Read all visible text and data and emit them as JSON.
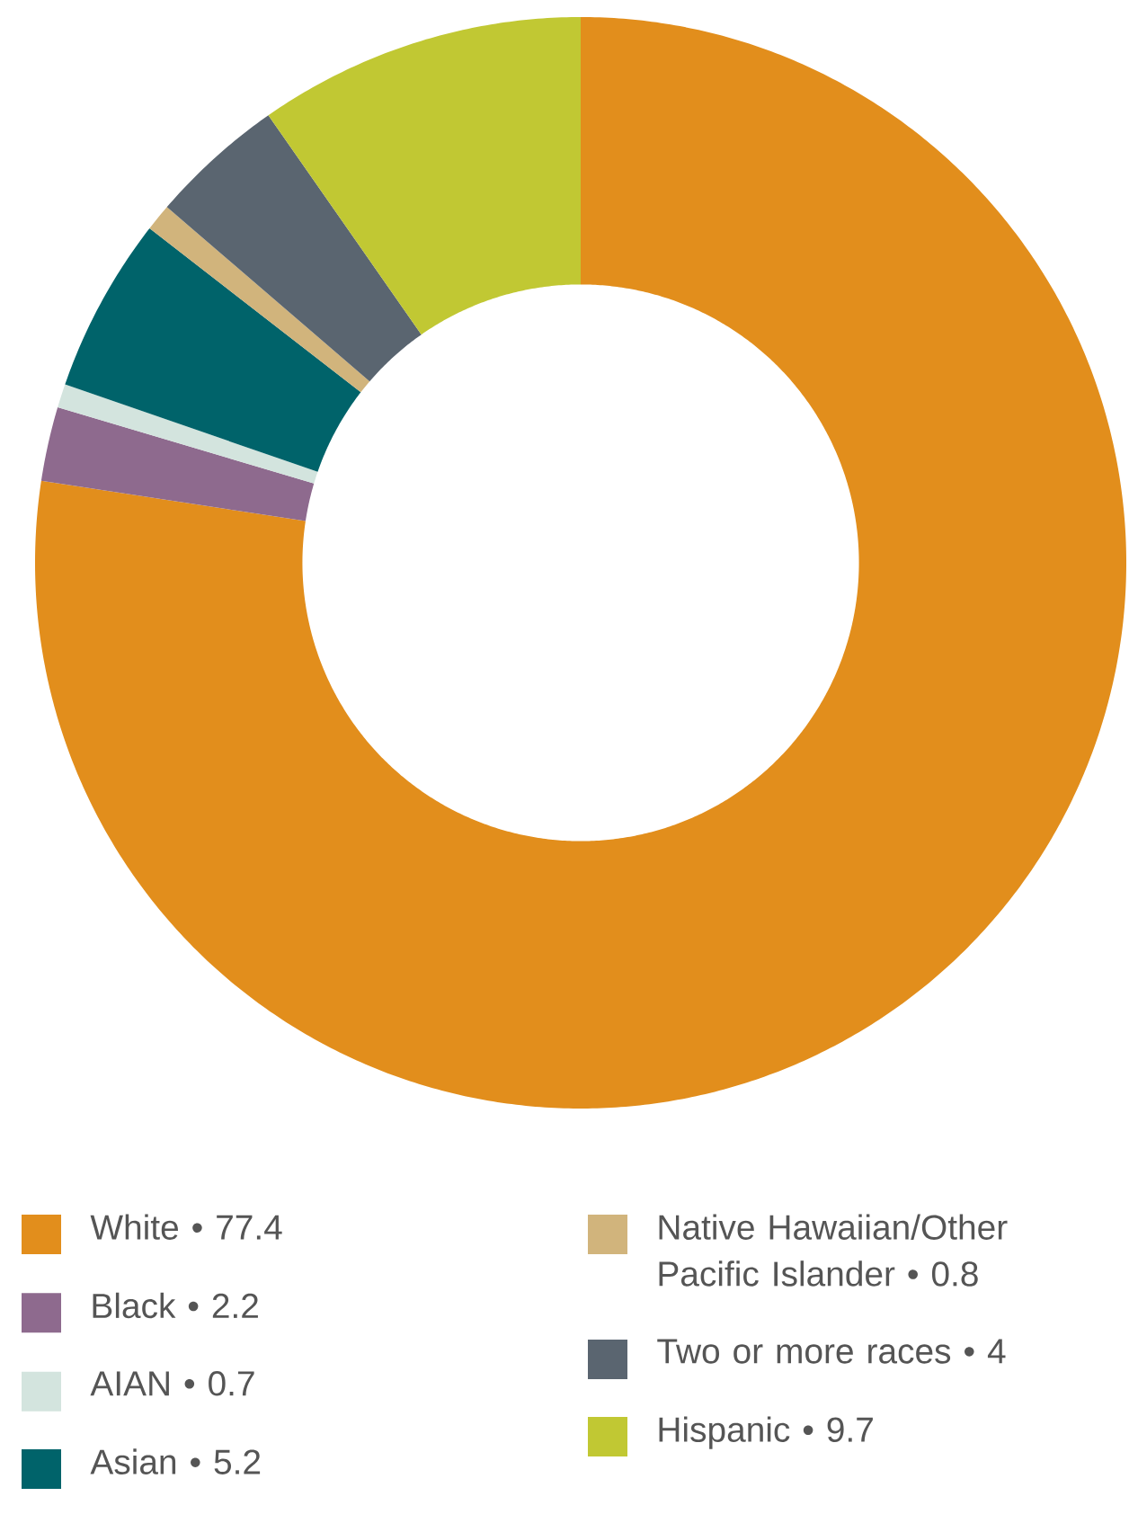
{
  "chart_data": {
    "type": "donut",
    "categories": [
      "White  • 77.4",
      "Black • 2.2",
      "AIAN • 0.7",
      "Asian • 5.2",
      "Native Hawaiian/Other Pacific Islander • 0.8",
      "Two or more races • 4",
      "Hispanic  • 9.7"
    ],
    "values": [
      77.4,
      2.2,
      0.7,
      5.2,
      0.8,
      4,
      9.7
    ],
    "colors": [
      "#e28e1c",
      "#8e6a8e",
      "#d3e4de",
      "#00636a",
      "#d1b47c",
      "#5a6570",
      "#c1c833"
    ],
    "legend": "bottom"
  }
}
